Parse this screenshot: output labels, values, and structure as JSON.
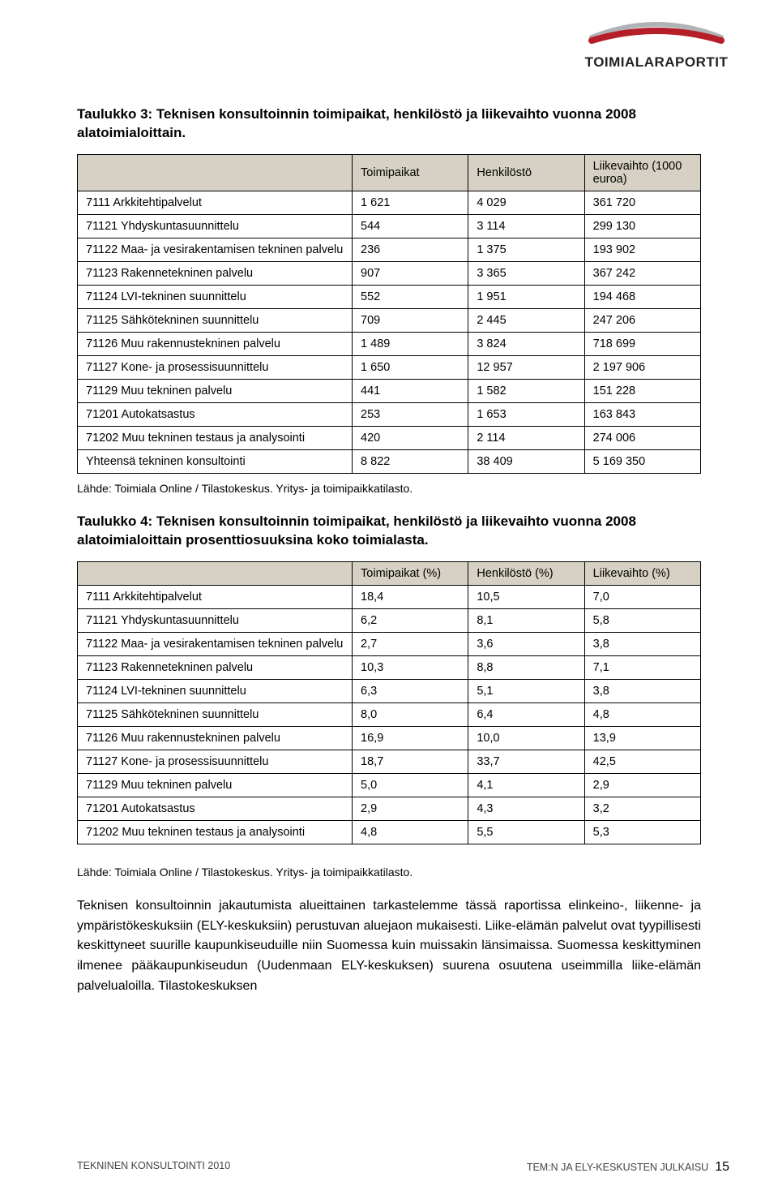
{
  "logo": {
    "text": "TOIMIALARAPORTIT",
    "swoosh_color_top": "#b0b3b5",
    "swoosh_color_bottom": "#b51f2a"
  },
  "table3": {
    "title": "Taulukko 3: Teknisen konsultoinnin toimipaikat, henkilöstö ja liikevaihto vuonna 2008 alatoimialoittain.",
    "header_bg": "#d6d1c4",
    "columns": [
      "",
      "Toimipaikat",
      "Henkilöstö",
      "Liikevaihto (1000 euroa)"
    ],
    "rows": [
      [
        "7111 Arkkitehtipalvelut",
        "1 621",
        "4 029",
        "361 720"
      ],
      [
        "71121 Yhdyskuntasuunnittelu",
        "544",
        "3 114",
        "299 130"
      ],
      [
        "71122 Maa- ja vesirakentamisen tekninen palvelu",
        "236",
        "1 375",
        "193 902"
      ],
      [
        "71123 Rakennetekninen palvelu",
        "907",
        "3 365",
        "367 242"
      ],
      [
        "71124 LVI-tekninen suunnittelu",
        "552",
        "1 951",
        "194 468"
      ],
      [
        "71125 Sähkötekninen suunnittelu",
        "709",
        "2 445",
        "247 206"
      ],
      [
        "71126 Muu rakennustekninen palvelu",
        "1 489",
        "3 824",
        "718 699"
      ],
      [
        "71127 Kone- ja prosessisuunnittelu",
        "1 650",
        "12 957",
        "2 197 906"
      ],
      [
        "71129 Muu tekninen palvelu",
        "441",
        "1 582",
        "151 228"
      ],
      [
        "71201 Autokatsastus",
        "253",
        "1 653",
        "163 843"
      ],
      [
        "71202 Muu tekninen testaus ja analysointi",
        "420",
        "2 114",
        "274 006"
      ],
      [
        "Yhteensä tekninen konsultointi",
        "8 822",
        "38 409",
        "5 169 350"
      ]
    ],
    "source": "Lähde: Toimiala Online / Tilastokeskus. Yritys- ja toimipaikkatilasto."
  },
  "table4": {
    "title": "Taulukko 4: Teknisen konsultoinnin toimipaikat, henkilöstö ja liikevaihto vuonna 2008 alatoimialoittain prosenttiosuuksina koko toimialasta.",
    "header_bg": "#d6d1c4",
    "columns": [
      "",
      "Toimipaikat (%)",
      "Henkilöstö (%)",
      "Liikevaihto (%)"
    ],
    "rows": [
      [
        "7111 Arkkitehtipalvelut",
        "18,4",
        "10,5",
        "7,0"
      ],
      [
        "71121 Yhdyskuntasuunnittelu",
        "6,2",
        "8,1",
        "5,8"
      ],
      [
        "71122 Maa- ja vesirakentamisen tekninen palvelu",
        "2,7",
        "3,6",
        "3,8"
      ],
      [
        "71123 Rakennetekninen palvelu",
        "10,3",
        "8,8",
        "7,1"
      ],
      [
        "71124 LVI-tekninen suunnittelu",
        "6,3",
        "5,1",
        "3,8"
      ],
      [
        "71125 Sähkötekninen suunnittelu",
        "8,0",
        "6,4",
        "4,8"
      ],
      [
        "71126 Muu rakennustekninen palvelu",
        "16,9",
        "10,0",
        "13,9"
      ],
      [
        "71127 Kone- ja prosessisuunnittelu",
        "18,7",
        "33,7",
        "42,5"
      ],
      [
        "71129 Muu tekninen palvelu",
        "5,0",
        "4,1",
        "2,9"
      ],
      [
        "71201 Autokatsastus",
        "2,9",
        "4,3",
        "3,2"
      ],
      [
        "71202 Muu tekninen testaus ja analysointi",
        "4,8",
        "5,5",
        "5,3"
      ]
    ],
    "source": "Lähde: Toimiala Online / Tilastokeskus. Yritys- ja toimipaikkatilasto."
  },
  "body_paragraph": "Teknisen konsultoinnin jakautumista alueittainen tarkastelemme tässä raportissa elinkeino-, liikenne- ja ympäristökeskuksiin (ELY-keskuksiin) perustuvan aluejaon mukaisesti. Liike-elämän palvelut ovat tyypillisesti keskittyneet suurille kaupunkiseuduille niin Suomessa kuin muissakin länsimaissa. Suomessa keskittyminen ilmenee pääkaupunkiseudun (Uudenmaan ELY-keskuksen) suurena osuutena useimmilla liike-elämän palvelualoilla. Tilastokeskuksen",
  "footer": {
    "left": "TEKNINEN KONSULTOINTI 2010",
    "right": "TEM:N JA ELY-KESKUSTEN JULKAISU",
    "page": "15"
  }
}
